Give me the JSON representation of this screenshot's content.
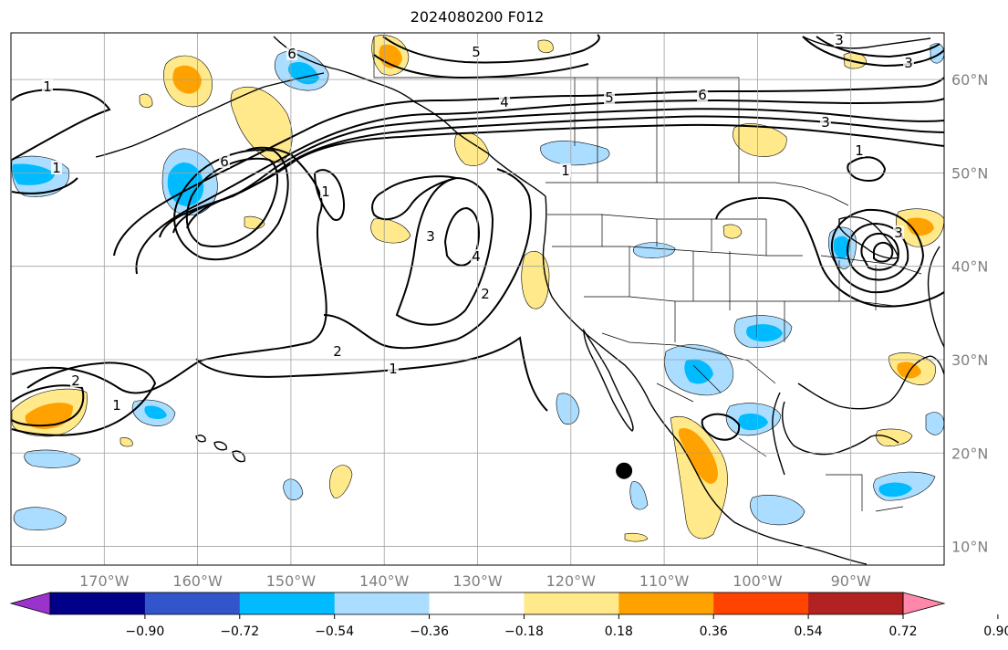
{
  "title": "2024080200 F012",
  "map": {
    "lon_range": [
      -180,
      -80
    ],
    "lat_range": [
      8,
      65
    ],
    "grid": true,
    "lat_labels": [
      {
        "lat": 60,
        "text": "60°N"
      },
      {
        "lat": 50,
        "text": "50°N"
      },
      {
        "lat": 40,
        "text": "40°N"
      },
      {
        "lat": 30,
        "text": "30°N"
      },
      {
        "lat": 20,
        "text": "20°N"
      },
      {
        "lat": 10,
        "text": "10°N"
      }
    ],
    "lon_labels": [
      {
        "lon": -170,
        "text": "170°W"
      },
      {
        "lon": -160,
        "text": "160°W"
      },
      {
        "lon": -150,
        "text": "150°W"
      },
      {
        "lon": -140,
        "text": "140°W"
      },
      {
        "lon": -130,
        "text": "130°W"
      },
      {
        "lon": -120,
        "text": "120°W"
      },
      {
        "lon": -110,
        "text": "110°W"
      },
      {
        "lon": -100,
        "text": "100°W"
      },
      {
        "lon": -90,
        "text": "90°W"
      }
    ],
    "marker": {
      "lon": -114.3,
      "lat": 18.1
    }
  },
  "contour_labels": [
    "1",
    "1",
    "1",
    "1",
    "1",
    "1",
    "1",
    "2",
    "2",
    "2",
    "3",
    "3",
    "3",
    "4",
    "4",
    "5",
    "5",
    "6",
    "6",
    "6",
    "3",
    "3"
  ],
  "colorbar": {
    "ticks": [
      "−0.90",
      "−0.72",
      "−0.54",
      "−0.36",
      "−0.18",
      "0.18",
      "0.36",
      "0.54",
      "0.72",
      "0.90"
    ],
    "colors": [
      "#9933cc",
      "#000088",
      "#3355cc",
      "#00bbff",
      "#aaddff",
      "#ffffff",
      "#ffe98a",
      "#ffa200",
      "#ff4400",
      "#b22222",
      "#ff88aa"
    ]
  },
  "colors": {
    "light_blue": "#aaddff",
    "blue": "#00bbff",
    "light_yellow": "#ffe98a",
    "orange": "#ffa200",
    "grid": "#a0a0a0",
    "coast": "#000000",
    "lat_lon_label": "#808080"
  }
}
